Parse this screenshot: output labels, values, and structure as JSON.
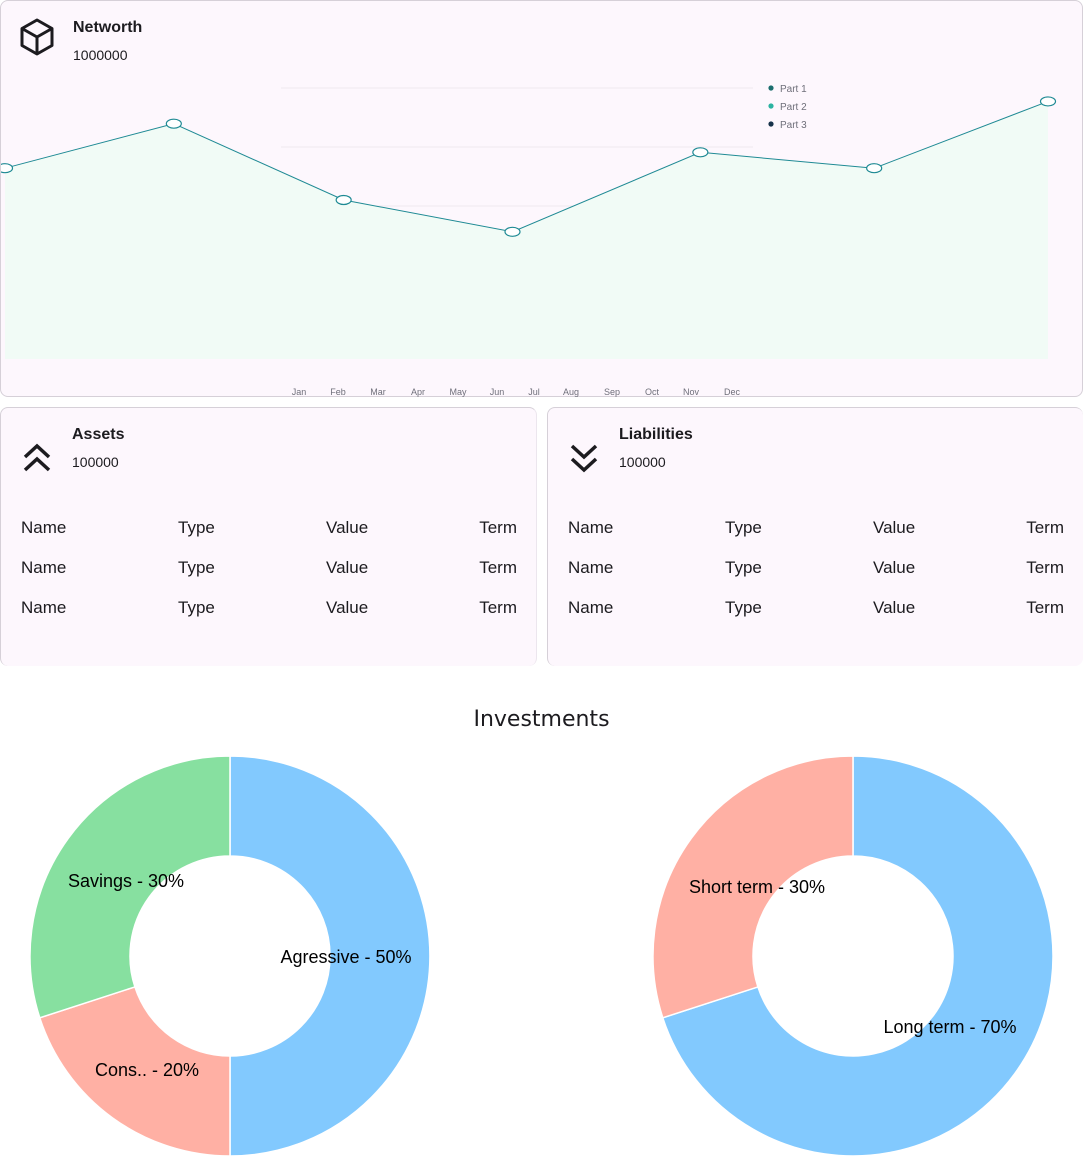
{
  "networth": {
    "title": "Networth",
    "value": "1000000",
    "icon": "cube-icon",
    "chart_data": {
      "type": "area",
      "x": [
        "Jan",
        "Feb",
        "Mar",
        "Apr",
        "May",
        "Jun",
        "Jul",
        "Aug",
        "Sep",
        "Oct",
        "Nov",
        "Dec"
      ],
      "series": [
        {
          "name": "Part 1",
          "color": "#1b6e6e"
        },
        {
          "name": "Part 2",
          "color": "#2bb3a1"
        },
        {
          "name": "Part 3",
          "color": "#16324a"
        }
      ],
      "points": [
        60,
        74,
        50,
        40,
        65,
        60,
        81
      ],
      "line_color": "#1f8a94",
      "fill_color": "#f1fbf6",
      "legend": "top-right",
      "grid": true
    }
  },
  "assets": {
    "title": "Assets",
    "value": "100000",
    "icon": "chevrons-up-icon",
    "rows": [
      [
        "Name",
        "Type",
        "Value",
        "Term"
      ],
      [
        "Name",
        "Type",
        "Value",
        "Term"
      ],
      [
        "Name",
        "Type",
        "Value",
        "Term"
      ]
    ]
  },
  "liabilities": {
    "title": "Liabilities",
    "value": "100000",
    "icon": "chevrons-down-icon",
    "rows": [
      [
        "Name",
        "Type",
        "Value",
        "Term"
      ],
      [
        "Name",
        "Type",
        "Value",
        "Term"
      ],
      [
        "Name",
        "Type",
        "Value",
        "Term"
      ]
    ]
  },
  "investments": {
    "title": "Investments",
    "chart_data": [
      {
        "type": "pie",
        "slices": [
          {
            "label": "Agressive - 50%",
            "value": 50,
            "color": "#82c9fe"
          },
          {
            "label": "Cons.. - 20%",
            "value": 20,
            "color": "#ffb0a4"
          },
          {
            "label": "Savings - 30%",
            "value": 30,
            "color": "#87e0a0"
          }
        ]
      },
      {
        "type": "pie",
        "slices": [
          {
            "label": "Long term - 70%",
            "value": 70,
            "color": "#82c9fe"
          },
          {
            "label": "Short term - 30%",
            "value": 30,
            "color": "#ffb0a4"
          }
        ]
      }
    ]
  }
}
